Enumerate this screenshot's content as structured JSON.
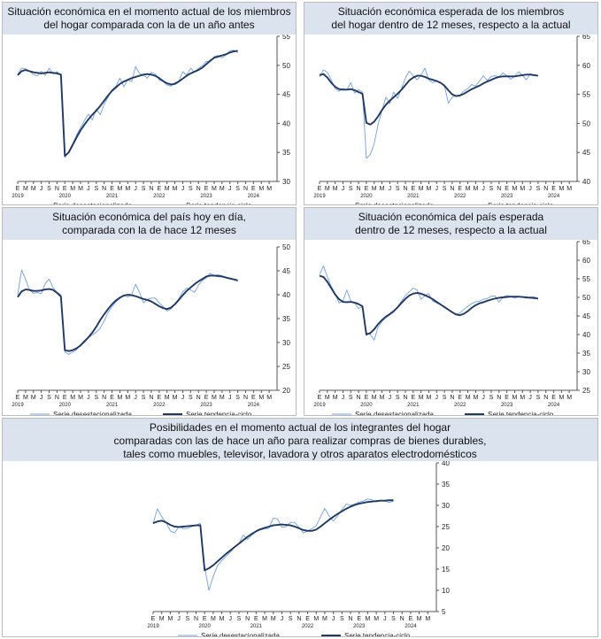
{
  "colors": {
    "deseasonalized": "#6f9fe6",
    "trend": "#1f3864",
    "title_bg": "#dbe3ef",
    "axis": "#555555"
  },
  "month_letters": [
    "E",
    "M",
    "M",
    "J",
    "S",
    "N",
    "E",
    "M",
    "M",
    "J",
    "S",
    "N",
    "E",
    "M",
    "M",
    "J",
    "S",
    "N",
    "E",
    "M",
    "M",
    "J",
    "S",
    "N",
    "E",
    "M",
    "M",
    "J",
    "S",
    "N",
    "E",
    "M",
    "M"
  ],
  "year_labels": [
    "2019",
    "2020",
    "2021",
    "2022",
    "2023",
    "2024"
  ],
  "legend": {
    "deseasonalized": "Serie desestacionalizada",
    "trend": "Serie tendencia-ciclo"
  },
  "chart_data": [
    {
      "type": "line",
      "title_lines": [
        "Situación económica en el momento actual de los miembros",
        "del hogar comparada con la de un año antes"
      ],
      "ylim": [
        30,
        55
      ],
      "yticks": [
        "30",
        "35",
        "40",
        "45",
        "50",
        "55"
      ],
      "series": [
        {
          "name": "Serie desestacionalizada",
          "values": [
            48.5,
            49.5,
            49.4,
            49.0,
            48.4,
            48.2,
            49.0,
            48.3,
            49.5,
            48.5,
            48.9,
            48.3,
            34.1,
            35.2,
            36.5,
            38.0,
            39.3,
            40.5,
            41.6,
            40.6,
            42.5,
            41.5,
            43.3,
            44.5,
            45.8,
            46.4,
            47.8,
            46.3,
            47.5,
            47.2,
            49.8,
            48.6,
            48.3,
            47.8,
            48.8,
            48.5,
            47.5,
            47.2,
            46.6,
            46.4,
            47.0,
            47.3,
            48.9,
            48.3,
            49.5,
            48.8,
            49.5,
            49.9,
            50.7,
            50.6,
            51.5,
            51.7,
            51.3,
            51.8,
            52.5,
            52.6,
            52.2
          ]
        },
        {
          "name": "Serie tendencia-ciclo",
          "values": [
            48.3,
            49.0,
            49.2,
            49.0,
            48.8,
            48.7,
            48.6,
            48.7,
            48.8,
            48.7,
            48.6,
            48.4,
            34.4,
            35.0,
            36.3,
            37.6,
            38.8,
            39.8,
            40.7,
            41.5,
            42.2,
            43.0,
            43.9,
            44.8,
            45.6,
            46.2,
            46.8,
            47.2,
            47.5,
            47.8,
            48.0,
            48.2,
            48.4,
            48.5,
            48.4,
            48.2,
            47.8,
            47.3,
            46.9,
            46.7,
            46.8,
            47.2,
            47.7,
            48.2,
            48.6,
            48.9,
            49.2,
            49.6,
            50.2,
            50.8,
            51.3,
            51.5,
            51.7,
            51.9,
            52.2,
            52.4,
            52.5
          ]
        }
      ]
    },
    {
      "type": "line",
      "title_lines": [
        "Situación económica esperada de los miembros",
        "del hogar dentro de 12 meses, respecto a la actual"
      ],
      "ylim": [
        40,
        65
      ],
      "yticks": [
        "40",
        "45",
        "50",
        "55",
        "60",
        "65"
      ],
      "series": [
        {
          "name": "Serie desestacionalizada",
          "values": [
            58.0,
            59.2,
            58.8,
            57.5,
            56.0,
            55.5,
            56.0,
            55.8,
            57.0,
            55.2,
            55.8,
            55.4,
            44.0,
            44.6,
            46.5,
            49.8,
            52.2,
            54.5,
            53.4,
            55.4,
            54.3,
            56.0,
            57.8,
            59.0,
            58.2,
            57.5,
            58.3,
            59.5,
            57.5,
            57.0,
            57.3,
            57.0,
            56.5,
            53.5,
            54.5,
            54.8,
            54.9,
            55.6,
            56.0,
            56.7,
            56.4,
            57.3,
            58.2,
            57.4,
            58.1,
            58.2,
            58.0,
            58.7,
            58.2,
            57.6,
            58.1,
            58.9,
            58.3,
            57.5,
            58.6,
            58.2,
            58.3
          ]
        },
        {
          "name": "Serie tendencia-ciclo",
          "values": [
            58.3,
            58.5,
            57.9,
            57.0,
            56.3,
            55.9,
            55.8,
            55.8,
            55.9,
            55.7,
            55.4,
            55.1,
            50.1,
            49.8,
            50.3,
            51.2,
            52.3,
            53.2,
            53.9,
            54.5,
            55.1,
            55.8,
            56.6,
            57.4,
            57.9,
            58.2,
            58.2,
            58.0,
            57.7,
            57.5,
            57.3,
            57.0,
            56.5,
            55.7,
            55.0,
            54.7,
            54.8,
            55.1,
            55.5,
            55.9,
            56.2,
            56.5,
            56.9,
            57.2,
            57.5,
            57.8,
            58.0,
            58.1,
            58.1,
            58.1,
            58.1,
            58.2,
            58.3,
            58.4,
            58.4,
            58.3,
            58.2
          ]
        }
      ]
    },
    {
      "type": "line",
      "title_lines": [
        "Situación económica del país hoy en día,",
        "comparada con la de hace 12 meses"
      ],
      "ylim": [
        20,
        50
      ],
      "yticks": [
        "20",
        "25",
        "30",
        "35",
        "40",
        "45",
        "50"
      ],
      "series": [
        {
          "name": "Serie desestacionalizada",
          "values": [
            40.0,
            45.2,
            43.2,
            41.0,
            40.3,
            40.5,
            40.2,
            42.3,
            43.3,
            41.5,
            40.5,
            40.0,
            28.0,
            27.5,
            28.0,
            28.5,
            29.5,
            30.5,
            31.0,
            31.6,
            32.2,
            33.0,
            34.5,
            36.3,
            37.5,
            38.5,
            39.2,
            40.0,
            39.5,
            40.0,
            42.2,
            40.5,
            38.3,
            39.0,
            39.3,
            39.3,
            38.3,
            37.5,
            36.6,
            37.0,
            38.0,
            39.2,
            40.6,
            41.4,
            41.0,
            40.5,
            42.0,
            43.0,
            43.5,
            44.5,
            44.0,
            44.2,
            44.0,
            43.5,
            43.5,
            43.2,
            42.8
          ]
        },
        {
          "name": "Serie tendencia-ciclo",
          "values": [
            39.5,
            40.7,
            41.1,
            41.0,
            40.8,
            40.8,
            40.9,
            41.1,
            41.2,
            41.0,
            40.4,
            39.6,
            28.4,
            28.2,
            28.4,
            28.8,
            29.4,
            30.2,
            31.1,
            32.1,
            33.3,
            34.7,
            35.9,
            37.0,
            38.0,
            38.8,
            39.4,
            39.8,
            40.0,
            39.9,
            39.7,
            39.4,
            39.1,
            38.9,
            38.6,
            38.1,
            37.6,
            37.2,
            37.0,
            37.3,
            38.0,
            38.9,
            39.9,
            40.8,
            41.5,
            42.2,
            42.8,
            43.3,
            43.8,
            44.0,
            44.0,
            43.9,
            43.8,
            43.6,
            43.4,
            43.2,
            43.0
          ]
        }
      ]
    },
    {
      "type": "line",
      "title_lines": [
        "Situación económica del país esperada",
        "dentro de 12 meses, respecto a la actual"
      ],
      "ylim": [
        25,
        65
      ],
      "yticks": [
        "25",
        "30",
        "35",
        "40",
        "45",
        "50",
        "55",
        "60",
        "65"
      ],
      "series": [
        {
          "name": "Serie desestacionalizada",
          "values": [
            56.0,
            58.5,
            55.5,
            53.0,
            51.0,
            48.5,
            49.0,
            52.0,
            49.0,
            48.5,
            47.0,
            47.5,
            40.5,
            40.0,
            38.5,
            42.0,
            43.5,
            44.5,
            45.3,
            46.0,
            47.5,
            49.0,
            50.5,
            51.5,
            52.5,
            52.0,
            49.5,
            50.5,
            51.0,
            49.0,
            48.5,
            48.0,
            47.5,
            46.8,
            46.0,
            45.5,
            45.8,
            46.8,
            47.6,
            48.3,
            48.8,
            49.0,
            49.5,
            49.7,
            50.3,
            50.4,
            48.7,
            50.1,
            50.5,
            50.2,
            49.8,
            50.1,
            50.2,
            49.8,
            50.1,
            50.2,
            49.5
          ]
        },
        {
          "name": "Serie tendencia-ciclo",
          "values": [
            55.8,
            55.5,
            54.2,
            52.5,
            50.8,
            49.5,
            48.8,
            48.7,
            48.8,
            48.6,
            48.2,
            47.6,
            40.0,
            40.4,
            41.4,
            42.8,
            43.9,
            44.8,
            45.5,
            46.3,
            47.3,
            48.5,
            49.6,
            50.5,
            51.0,
            51.2,
            51.0,
            50.6,
            50.1,
            49.5,
            48.8,
            48.1,
            47.4,
            46.7,
            46.0,
            45.4,
            45.2,
            45.6,
            46.3,
            47.2,
            47.9,
            48.4,
            48.7,
            49.1,
            49.4,
            49.7,
            49.9,
            50.0,
            50.1,
            50.2,
            50.2,
            50.2,
            50.1,
            50.0,
            49.9,
            49.8,
            49.7
          ]
        }
      ]
    },
    {
      "type": "line",
      "title_lines": [
        "Posibilidades en el momento actual de los integrantes del hogar",
        "comparadas con las de hace un año para realizar compras de bienes durables,",
        "tales como muebles, televisor, lavadora y otros aparatos electrodomésticos"
      ],
      "ylim": [
        5,
        40
      ],
      "yticks": [
        "5",
        "10",
        "15",
        "20",
        "25",
        "30",
        "35",
        "40"
      ],
      "series": [
        {
          "name": "Serie desestacionalizada",
          "values": [
            25.7,
            29.2,
            27.3,
            26.0,
            24.0,
            23.5,
            25.0,
            24.5,
            24.6,
            25.0,
            25.3,
            25.8,
            15.5,
            10.0,
            13.3,
            15.8,
            17.0,
            18.0,
            19.0,
            20.2,
            21.0,
            23.0,
            22.0,
            23.0,
            23.8,
            24.2,
            24.5,
            24.6,
            27.0,
            26.8,
            24.8,
            25.0,
            26.0,
            26.0,
            24.8,
            23.5,
            24.0,
            24.5,
            25.2,
            27.3,
            29.3,
            27.5,
            26.3,
            27.5,
            29.0,
            30.3,
            30.0,
            30.3,
            30.8,
            31.0,
            31.5,
            31.3,
            30.8,
            31.2,
            31.0,
            30.7,
            31.0
          ]
        },
        {
          "name": "Serie tendencia-ciclo",
          "values": [
            25.8,
            26.2,
            26.4,
            26.0,
            25.4,
            25.0,
            24.9,
            25.0,
            25.1,
            25.2,
            25.3,
            25.3,
            14.7,
            15.2,
            15.9,
            16.8,
            17.7,
            18.6,
            19.4,
            20.2,
            21.0,
            21.8,
            22.6,
            23.3,
            23.9,
            24.4,
            24.7,
            25.0,
            25.3,
            25.4,
            25.5,
            25.4,
            25.3,
            25.0,
            24.6,
            24.2,
            24.0,
            24.0,
            24.3,
            25.0,
            25.8,
            26.6,
            27.3,
            28.0,
            28.6,
            29.2,
            29.7,
            30.1,
            30.4,
            30.6,
            30.8,
            30.9,
            31.0,
            31.1,
            31.1,
            31.2,
            31.2
          ]
        }
      ]
    }
  ]
}
